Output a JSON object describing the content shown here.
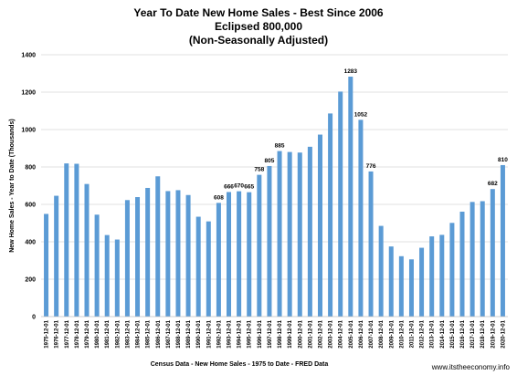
{
  "chart_data": {
    "type": "bar",
    "title_lines": [
      "Year To Date New Home Sales - Best Since 2006",
      "Eclipsed 800,000",
      "(Non-Seasonally Adjusted)"
    ],
    "ylabel": "New Home Sales - Year to Date (Thousands)",
    "xlabel": "Census Data - New Home Sales - 1975 to Date - FRED Data",
    "source": "www.itstheeconomy.info",
    "ylim": [
      0,
      1400
    ],
    "yticks": [
      0,
      200,
      400,
      600,
      800,
      1000,
      1200,
      1400
    ],
    "bar_color": "#5b9bd5",
    "grid": true,
    "categories": [
      "1975-12-01",
      "1976-12-01",
      "1977-12-01",
      "1978-12-01",
      "1979-12-01",
      "1980-12-01",
      "1981-12-01",
      "1982-12-01",
      "1983-12-01",
      "1984-12-01",
      "1985-12-01",
      "1986-12-01",
      "1987-12-01",
      "1988-12-01",
      "1989-12-01",
      "1990-12-01",
      "1991-12-01",
      "1992-12-01",
      "1993-12-01",
      "1994-12-01",
      "1995-12-01",
      "1996-12-01",
      "1997-12-01",
      "1998-12-01",
      "1999-12-01",
      "2000-12-01",
      "2001-12-01",
      "2002-12-01",
      "2003-12-01",
      "2004-12-01",
      "2005-12-01",
      "2006-12-01",
      "2007-12-01",
      "2008-12-01",
      "2009-12-01",
      "2010-12-01",
      "2011-12-01",
      "2012-12-01",
      "2013-12-01",
      "2014-12-01",
      "2015-12-01",
      "2016-12-01",
      "2017-12-01",
      "2018-12-01",
      "2019-12-01",
      "2020-12-01"
    ],
    "values": [
      549,
      646,
      819,
      817,
      709,
      545,
      436,
      412,
      623,
      639,
      688,
      750,
      671,
      676,
      650,
      534,
      509,
      608,
      666,
      670,
      665,
      758,
      805,
      885,
      880,
      877,
      908,
      973,
      1086,
      1203,
      1283,
      1052,
      776,
      485,
      375,
      323,
      306,
      368,
      429,
      437,
      501,
      561,
      613,
      617,
      682,
      810
    ],
    "data_labels": [
      {
        "index": 17,
        "text": "608"
      },
      {
        "index": 18,
        "text": "666"
      },
      {
        "index": 19,
        "text": "670"
      },
      {
        "index": 20,
        "text": "665"
      },
      {
        "index": 21,
        "text": "758"
      },
      {
        "index": 22,
        "text": "805"
      },
      {
        "index": 23,
        "text": "885"
      },
      {
        "index": 30,
        "text": "1283"
      },
      {
        "index": 31,
        "text": "1052"
      },
      {
        "index": 32,
        "text": "776"
      },
      {
        "index": 44,
        "text": "682"
      },
      {
        "index": 45,
        "text": "810"
      }
    ]
  }
}
